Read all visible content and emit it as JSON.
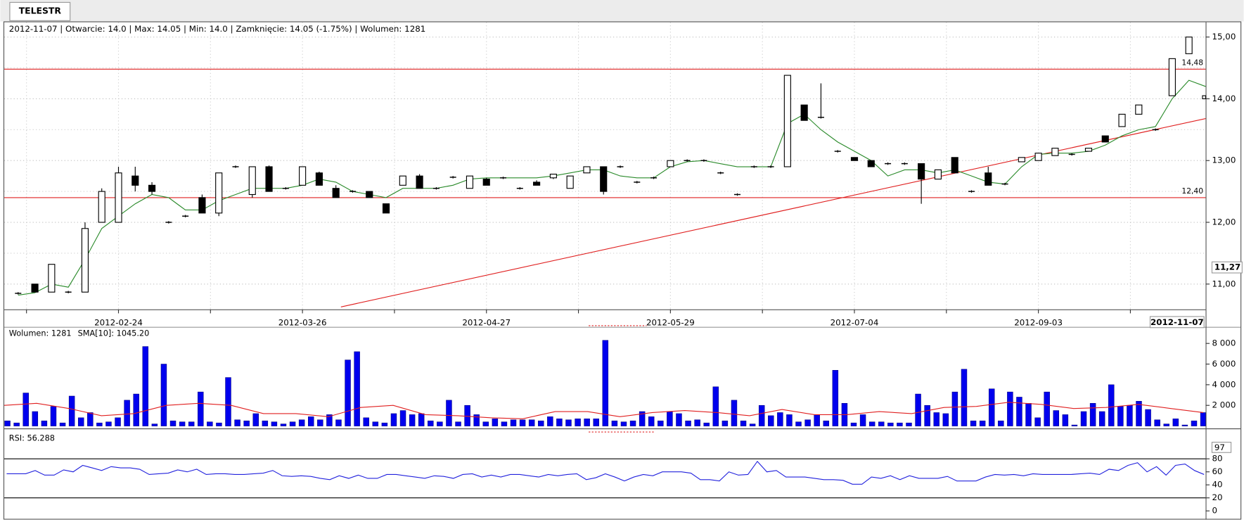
{
  "tab": "TELESTR",
  "chart_data": [
    {
      "type": "candlestick",
      "info": "2012-11-07 | Otwarcie: 14.0 | Max: 14.05 | Min: 14.0 | Zamknięcie: 14.05 (-1.75%)  | Wolumen: 1281",
      "categories": [
        null,
        null,
        null,
        null,
        null,
        null,
        "2012-02-24",
        null,
        null,
        null,
        null,
        null,
        null,
        null,
        null,
        null,
        null,
        "2012-03-26",
        null,
        null,
        null,
        null,
        null,
        null,
        null,
        null,
        null,
        null,
        "2012-04-27",
        null,
        null,
        null,
        null,
        null,
        null,
        null,
        null,
        null,
        null,
        "2012-05-29",
        null,
        null,
        null,
        null,
        null,
        null,
        null,
        null,
        null,
        null,
        "2012-07-04",
        null,
        null,
        null,
        null,
        null,
        null,
        null,
        null,
        null,
        null,
        "2012-09-03",
        null,
        null,
        null,
        null,
        null,
        null,
        null,
        null,
        null,
        "2012-11-07"
      ],
      "open": [
        10.85,
        11.0,
        10.87,
        10.87,
        10.87,
        12.0,
        12.0,
        12.75,
        12.6,
        12.0,
        12.1,
        12.4,
        12.15,
        12.9,
        12.45,
        12.9,
        12.55,
        12.6,
        12.8,
        12.55,
        12.5,
        12.5,
        12.3,
        12.6,
        12.75,
        12.55,
        12.73,
        12.55,
        12.7,
        12.72,
        12.55,
        12.65,
        12.72,
        12.55,
        12.8,
        12.9,
        12.9,
        12.65,
        12.72,
        12.9,
        13.0,
        13.0,
        12.8,
        12.45,
        12.9,
        12.9,
        12.9,
        13.9,
        13.7,
        13.15,
        13.05,
        13.0,
        12.95,
        12.95,
        12.95,
        12.7,
        13.05,
        12.5,
        12.8,
        12.62,
        12.98,
        13.0,
        13.08,
        13.1,
        13.15,
        13.4,
        13.55,
        13.75,
        13.5,
        14.05,
        14.73,
        14.0
      ],
      "high": [
        10.87,
        11.0,
        11.32,
        10.89,
        12.0,
        12.55,
        12.9,
        12.9,
        12.65,
        12.02,
        12.12,
        12.45,
        12.8,
        12.92,
        12.9,
        12.92,
        12.57,
        12.9,
        12.82,
        12.6,
        12.52,
        12.5,
        12.3,
        12.75,
        12.78,
        12.57,
        12.75,
        12.75,
        12.72,
        12.74,
        12.57,
        12.68,
        12.78,
        12.75,
        12.9,
        12.9,
        12.92,
        12.67,
        12.74,
        13.0,
        13.02,
        13.02,
        12.82,
        12.47,
        12.92,
        12.92,
        14.38,
        13.9,
        14.25,
        13.17,
        13.05,
        13.0,
        12.97,
        12.97,
        12.95,
        12.85,
        13.05,
        12.52,
        12.9,
        12.64,
        13.05,
        13.12,
        13.2,
        13.12,
        13.2,
        13.4,
        13.75,
        13.9,
        13.52,
        14.65,
        15.0,
        14.05
      ],
      "low": [
        10.83,
        10.87,
        10.87,
        10.85,
        10.87,
        12.0,
        12.0,
        12.5,
        12.45,
        11.98,
        12.08,
        12.15,
        12.1,
        12.88,
        12.4,
        12.5,
        12.53,
        12.6,
        12.6,
        12.4,
        12.48,
        12.4,
        12.15,
        12.6,
        12.55,
        12.53,
        12.71,
        12.55,
        12.6,
        12.7,
        12.53,
        12.6,
        12.7,
        12.55,
        12.8,
        12.45,
        12.88,
        12.63,
        12.7,
        12.9,
        12.98,
        12.98,
        12.78,
        12.43,
        12.88,
        12.88,
        12.9,
        13.65,
        13.68,
        13.13,
        13.0,
        12.9,
        12.93,
        12.93,
        12.3,
        12.7,
        12.8,
        12.48,
        12.6,
        12.6,
        12.98,
        13.0,
        13.08,
        13.08,
        13.15,
        13.3,
        13.55,
        13.75,
        13.48,
        14.05,
        14.73,
        14.0
      ],
      "close": [
        10.85,
        10.87,
        11.32,
        10.87,
        11.9,
        12.5,
        12.8,
        12.6,
        12.5,
        12.0,
        12.1,
        12.15,
        12.8,
        12.9,
        12.9,
        12.5,
        12.55,
        12.9,
        12.6,
        12.4,
        12.5,
        12.4,
        12.15,
        12.75,
        12.55,
        12.55,
        12.73,
        12.75,
        12.6,
        12.72,
        12.55,
        12.6,
        12.78,
        12.75,
        12.9,
        12.5,
        12.9,
        12.65,
        12.72,
        13.0,
        13.0,
        13.0,
        12.8,
        12.45,
        12.9,
        12.9,
        14.38,
        13.65,
        13.7,
        13.15,
        13.0,
        12.9,
        12.95,
        12.95,
        12.7,
        12.85,
        12.8,
        12.5,
        12.6,
        12.62,
        13.05,
        13.12,
        13.2,
        13.1,
        13.2,
        13.3,
        13.75,
        13.9,
        13.5,
        14.65,
        15.0,
        14.05
      ],
      "overlay": {
        "color": "#2a8a2a",
        "values": [
          10.82,
          10.86,
          11.0,
          10.95,
          11.4,
          11.9,
          12.1,
          12.3,
          12.45,
          12.4,
          12.2,
          12.2,
          12.35,
          12.45,
          12.55,
          12.55,
          12.55,
          12.6,
          12.7,
          12.65,
          12.5,
          12.45,
          12.4,
          12.55,
          12.55,
          12.55,
          12.6,
          12.7,
          12.72,
          12.72,
          12.72,
          12.72,
          12.75,
          12.8,
          12.85,
          12.85,
          12.75,
          12.72,
          12.72,
          12.9,
          12.98,
          13.0,
          12.95,
          12.9,
          12.9,
          12.9,
          13.6,
          13.75,
          13.5,
          13.3,
          13.15,
          13.0,
          12.75,
          12.85,
          12.85,
          12.8,
          12.85,
          12.75,
          12.65,
          12.62,
          12.9,
          13.1,
          13.12,
          13.12,
          13.15,
          13.25,
          13.4,
          13.5,
          13.55,
          14.0,
          14.3,
          14.2
        ]
      },
      "hlines": [
        {
          "value": 14.48,
          "label": "14,48"
        },
        {
          "value": 12.4,
          "label": "12,40"
        }
      ],
      "hline_color": "#e02020",
      "trendline": {
        "x": [
          19.3,
          71
        ],
        "values": [
          10.63,
          13.68
        ]
      },
      "cursor_label": {
        "value": 11.27,
        "label": "11,27"
      },
      "ylim": [
        10.59,
        15.24
      ],
      "yticks": [
        {
          "value": 15,
          "label": "15,00"
        },
        {
          "value": 14,
          "label": "14,00"
        },
        {
          "value": 13,
          "label": "13,00"
        },
        {
          "value": 12,
          "label": "12,00"
        },
        {
          "value": 11,
          "label": "11,00"
        }
      ],
      "grid": true
    },
    {
      "type": "bar",
      "series": [
        {
          "name": "Wolumen: 1281",
          "color": "#0000ee",
          "values": [
            500,
            300,
            3200,
            1400,
            500,
            1900,
            300,
            2900,
            800,
            1300,
            300,
            400,
            800,
            2500,
            3100,
            7700,
            200,
            6000,
            500,
            400,
            400,
            3300,
            400,
            300,
            4700,
            600,
            500,
            1200,
            500,
            400,
            200,
            400,
            600,
            900,
            600,
            1100,
            600,
            6400,
            7200,
            800,
            400,
            300,
            1200,
            1500,
            1100,
            1200,
            500,
            400,
            2500,
            400,
            2000,
            1100,
            400,
            700,
            400,
            600,
            600,
            600,
            500,
            900,
            700,
            600,
            700,
            700,
            700,
            8300,
            500,
            400,
            500,
            1400,
            900,
            500,
            1400,
            1200,
            500,
            600,
            300,
            3800,
            500,
            2500,
            500,
            200,
            2000,
            1000,
            1300,
            1100,
            400,
            600,
            1100,
            500,
            5400,
            2200,
            300,
            1100,
            400,
            400,
            300,
            300,
            300,
            3100,
            2000,
            1300,
            1200,
            3300,
            5500,
            500,
            500,
            3600,
            500,
            3300,
            2800,
            2200,
            800,
            3300,
            1500,
            1100,
            100,
            1400,
            2200,
            1400,
            4000,
            1900,
            2000,
            2400,
            1600,
            600,
            200,
            700,
            100,
            500,
            1300
          ]
        },
        {
          "name": "SMA[10]: 1045.20",
          "color": "#e02020",
          "type": "line",
          "values": [
            2000,
            2200,
            1700,
            1000,
            1200,
            2000,
            2200,
            2000,
            1200,
            1200,
            900,
            1800,
            2000,
            1100,
            1000,
            800,
            700,
            1400,
            1400,
            900,
            1300,
            1500,
            1300,
            1000,
            1600,
            1100,
            1100,
            1400,
            1200,
            1800,
            1900,
            2300,
            2100,
            1700,
            1800,
            2100,
            1700,
            1300
          ]
        }
      ],
      "ylim": [
        0,
        9300
      ],
      "yticks": [
        {
          "value": 8000,
          "label": "8 000"
        },
        {
          "value": 6000,
          "label": "6 000"
        },
        {
          "value": 4000,
          "label": "4 000"
        },
        {
          "value": 2000,
          "label": "2 000"
        }
      ]
    },
    {
      "type": "line",
      "series": [
        {
          "name": "RSI: 56.288",
          "color": "#2222dd",
          "values": [
            57,
            57,
            57,
            62,
            55,
            55,
            63,
            60,
            70,
            66,
            62,
            68,
            66,
            66,
            64,
            56,
            57,
            58,
            63,
            60,
            64,
            56,
            57,
            57,
            56,
            56,
            57,
            58,
            62,
            54,
            53,
            54,
            53,
            50,
            48,
            54,
            50,
            55,
            50,
            50,
            56,
            56,
            54,
            52,
            50,
            54,
            53,
            50,
            56,
            57,
            52,
            55,
            52,
            56,
            56,
            54,
            52,
            56,
            54,
            56,
            57,
            48,
            51,
            57,
            52,
            46,
            52,
            56,
            54,
            60,
            60,
            60,
            58,
            48,
            48,
            46,
            60,
            55,
            56,
            76,
            60,
            62,
            52,
            52,
            52,
            50,
            48,
            48,
            47,
            41,
            41,
            52,
            50,
            54,
            48,
            54,
            50,
            50,
            50,
            53,
            46,
            46,
            46,
            52,
            56,
            55,
            56,
            54,
            57,
            56,
            56,
            56,
            56,
            57,
            58,
            56,
            64,
            62,
            70,
            74,
            60,
            68,
            55,
            70,
            72,
            62,
            56
          ]
        }
      ],
      "levels": [
        80,
        20
      ],
      "cursor_label": 97,
      "ylim": [
        0,
        117
      ],
      "yticks": [
        80,
        60,
        40,
        20,
        0
      ]
    }
  ]
}
